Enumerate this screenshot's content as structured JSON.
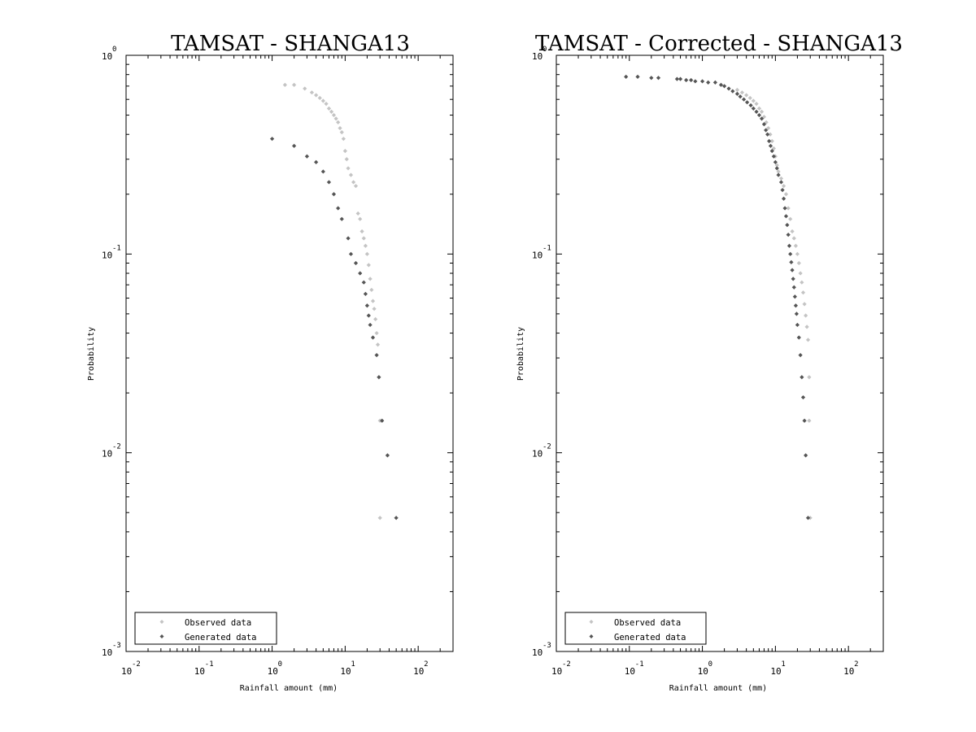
{
  "colors": {
    "observed": "#c4c4c4",
    "generated": "#555555",
    "axis": "#000000"
  },
  "chart_data": [
    {
      "type": "scatter",
      "title": "TAMSAT - SHANGA13",
      "xlabel": "Rainfall amount (mm)",
      "ylabel": "Probability",
      "xscale": "log",
      "yscale": "log",
      "xlim": [
        0.01,
        300
      ],
      "ylim": [
        0.001,
        1
      ],
      "x_ticks": [
        {
          "base": "10",
          "exp": "-2"
        },
        {
          "base": "10",
          "exp": "-1"
        },
        {
          "base": "10",
          "exp": "0"
        },
        {
          "base": "10",
          "exp": "1"
        },
        {
          "base": "10",
          "exp": "2"
        }
      ],
      "y_ticks": [
        {
          "base": "10",
          "exp": "0"
        },
        {
          "base": "10",
          "exp": "-1"
        },
        {
          "base": "10",
          "exp": "-2"
        },
        {
          "base": "10",
          "exp": "-3"
        }
      ],
      "legend": {
        "position": "bottom-left",
        "entries": [
          "Observed data",
          "Generated data"
        ]
      },
      "series": [
        {
          "name": "Observed data",
          "points": [
            [
              1.5,
              0.71
            ],
            [
              2.0,
              0.71
            ],
            [
              2.8,
              0.68
            ],
            [
              3.5,
              0.65
            ],
            [
              4.0,
              0.63
            ],
            [
              4.5,
              0.61
            ],
            [
              5.0,
              0.59
            ],
            [
              5.5,
              0.57
            ],
            [
              6.0,
              0.54
            ],
            [
              6.5,
              0.52
            ],
            [
              7.0,
              0.5
            ],
            [
              7.5,
              0.48
            ],
            [
              8.0,
              0.46
            ],
            [
              8.5,
              0.43
            ],
            [
              9.0,
              0.41
            ],
            [
              9.5,
              0.38
            ],
            [
              10.0,
              0.33
            ],
            [
              10.5,
              0.3
            ],
            [
              11.0,
              0.27
            ],
            [
              12.0,
              0.25
            ],
            [
              13.0,
              0.23
            ],
            [
              14.0,
              0.22
            ],
            [
              15.0,
              0.16
            ],
            [
              16.0,
              0.15
            ],
            [
              17.0,
              0.13
            ],
            [
              18.0,
              0.12
            ],
            [
              19.0,
              0.11
            ],
            [
              20.0,
              0.1
            ],
            [
              21.0,
              0.088
            ],
            [
              22.0,
              0.075
            ],
            [
              23.0,
              0.066
            ],
            [
              24.0,
              0.058
            ],
            [
              25.0,
              0.053
            ],
            [
              26.0,
              0.047
            ],
            [
              27.0,
              0.04
            ],
            [
              28.0,
              0.035
            ],
            [
              29.0,
              0.024
            ],
            [
              30.0,
              0.0145
            ],
            [
              30.0,
              0.0047
            ]
          ]
        },
        {
          "name": "Generated data",
          "points": [
            [
              1.0,
              0.38
            ],
            [
              2.0,
              0.35
            ],
            [
              3.0,
              0.31
            ],
            [
              4.0,
              0.29
            ],
            [
              5.0,
              0.26
            ],
            [
              6.0,
              0.23
            ],
            [
              7.0,
              0.2
            ],
            [
              8.0,
              0.17
            ],
            [
              9.0,
              0.15
            ],
            [
              11.0,
              0.12
            ],
            [
              12.0,
              0.1
            ],
            [
              14.0,
              0.09
            ],
            [
              16.0,
              0.08
            ],
            [
              18.0,
              0.072
            ],
            [
              19.0,
              0.063
            ],
            [
              20.0,
              0.055
            ],
            [
              21.0,
              0.049
            ],
            [
              22.0,
              0.044
            ],
            [
              24.0,
              0.038
            ],
            [
              27.0,
              0.031
            ],
            [
              29.0,
              0.024
            ],
            [
              32.0,
              0.0145
            ],
            [
              38.0,
              0.0097
            ],
            [
              50.0,
              0.0047
            ]
          ]
        }
      ]
    },
    {
      "type": "scatter",
      "title": "TAMSAT - Corrected - SHANGA13",
      "xlabel": "Rainfall amount (mm)",
      "ylabel": "Probability",
      "xscale": "log",
      "yscale": "log",
      "xlim": [
        0.01,
        300
      ],
      "ylim": [
        0.001,
        1
      ],
      "x_ticks": [
        {
          "base": "10",
          "exp": "-2"
        },
        {
          "base": "10",
          "exp": "-1"
        },
        {
          "base": "10",
          "exp": "0"
        },
        {
          "base": "10",
          "exp": "1"
        },
        {
          "base": "10",
          "exp": "2"
        }
      ],
      "y_ticks": [
        {
          "base": "10",
          "exp": "0"
        },
        {
          "base": "10",
          "exp": "-1"
        },
        {
          "base": "10",
          "exp": "-2"
        },
        {
          "base": "10",
          "exp": "-3"
        }
      ],
      "legend": {
        "position": "bottom-left",
        "entries": [
          "Observed data",
          "Generated data"
        ]
      },
      "series": [
        {
          "name": "Observed data",
          "points": [
            [
              3.0,
              0.67
            ],
            [
              3.5,
              0.65
            ],
            [
              4.0,
              0.63
            ],
            [
              4.5,
              0.61
            ],
            [
              5.0,
              0.59
            ],
            [
              5.5,
              0.57
            ],
            [
              6.0,
              0.54
            ],
            [
              6.5,
              0.52
            ],
            [
              7.0,
              0.49
            ],
            [
              7.5,
              0.46
            ],
            [
              8.0,
              0.43
            ],
            [
              8.5,
              0.4
            ],
            [
              9.0,
              0.37
            ],
            [
              9.5,
              0.34
            ],
            [
              10.0,
              0.31
            ],
            [
              10.5,
              0.28
            ],
            [
              11.0,
              0.26
            ],
            [
              12.0,
              0.24
            ],
            [
              13.0,
              0.22
            ],
            [
              14.0,
              0.2
            ],
            [
              15.0,
              0.17
            ],
            [
              16.0,
              0.15
            ],
            [
              17.0,
              0.13
            ],
            [
              18.0,
              0.12
            ],
            [
              19.0,
              0.11
            ],
            [
              20.0,
              0.1
            ],
            [
              21.0,
              0.09
            ],
            [
              22.0,
              0.08
            ],
            [
              23.0,
              0.072
            ],
            [
              24.0,
              0.064
            ],
            [
              25.0,
              0.056
            ],
            [
              26.0,
              0.049
            ],
            [
              27.0,
              0.043
            ],
            [
              28.0,
              0.037
            ],
            [
              29.0,
              0.024
            ],
            [
              29.0,
              0.0145
            ],
            [
              30.0,
              0.0047
            ]
          ]
        },
        {
          "name": "Generated data",
          "points": [
            [
              0.09,
              0.78
            ],
            [
              0.13,
              0.78
            ],
            [
              0.2,
              0.77
            ],
            [
              0.25,
              0.77
            ],
            [
              0.45,
              0.76
            ],
            [
              0.5,
              0.76
            ],
            [
              0.6,
              0.75
            ],
            [
              0.7,
              0.75
            ],
            [
              0.8,
              0.74
            ],
            [
              1.0,
              0.74
            ],
            [
              1.2,
              0.73
            ],
            [
              1.5,
              0.73
            ],
            [
              1.8,
              0.71
            ],
            [
              2.0,
              0.7
            ],
            [
              2.3,
              0.68
            ],
            [
              2.6,
              0.66
            ],
            [
              3.0,
              0.64
            ],
            [
              3.3,
              0.62
            ],
            [
              3.7,
              0.6
            ],
            [
              4.1,
              0.58
            ],
            [
              4.6,
              0.56
            ],
            [
              5.0,
              0.54
            ],
            [
              5.5,
              0.52
            ],
            [
              6.0,
              0.5
            ],
            [
              6.5,
              0.48
            ],
            [
              7.0,
              0.45
            ],
            [
              7.4,
              0.42
            ],
            [
              7.8,
              0.4
            ],
            [
              8.2,
              0.37
            ],
            [
              8.6,
              0.35
            ],
            [
              9.0,
              0.33
            ],
            [
              9.5,
              0.31
            ],
            [
              10.0,
              0.29
            ],
            [
              10.5,
              0.27
            ],
            [
              11.0,
              0.25
            ],
            [
              12.0,
              0.23
            ],
            [
              12.5,
              0.21
            ],
            [
              13.0,
              0.19
            ],
            [
              13.5,
              0.17
            ],
            [
              14.0,
              0.155
            ],
            [
              14.5,
              0.14
            ],
            [
              15.0,
              0.125
            ],
            [
              15.5,
              0.11
            ],
            [
              16.0,
              0.1
            ],
            [
              16.5,
              0.091
            ],
            [
              17.0,
              0.083
            ],
            [
              17.5,
              0.075
            ],
            [
              18.0,
              0.068
            ],
            [
              18.5,
              0.061
            ],
            [
              19.0,
              0.055
            ],
            [
              19.5,
              0.05
            ],
            [
              20.0,
              0.044
            ],
            [
              21.0,
              0.038
            ],
            [
              22.0,
              0.031
            ],
            [
              23.0,
              0.024
            ],
            [
              24.0,
              0.019
            ],
            [
              25.0,
              0.0145
            ],
            [
              26.0,
              0.0097
            ],
            [
              28.0,
              0.0047
            ]
          ]
        }
      ]
    }
  ]
}
